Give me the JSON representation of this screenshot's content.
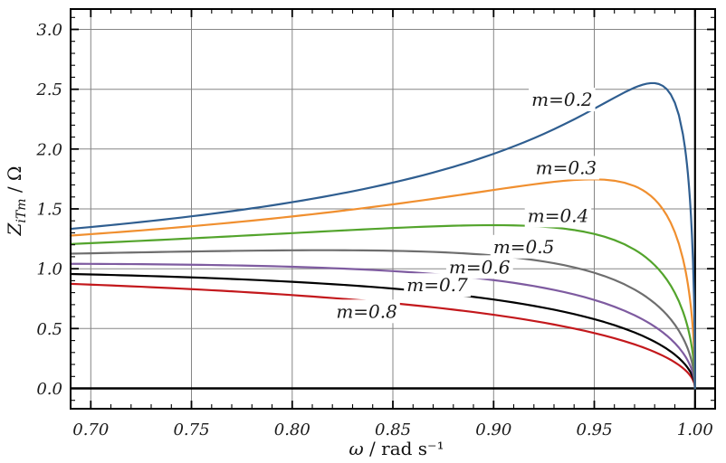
{
  "figure": {
    "background": "#ffffff"
  },
  "chart_data": {
    "type": "line",
    "title": "",
    "xlabel": "ω / rad s⁻¹",
    "ylabel": "Z_iTm / Ω",
    "xlabel_parts": {
      "pre": "ω",
      "post": " / rad s⁻¹"
    },
    "ylabel_parts": {
      "pre": "Z",
      "sub": "iTm",
      "post": " / Ω"
    },
    "xlim": [
      0.69,
      1.01
    ],
    "ylim": [
      -0.17,
      3.17
    ],
    "x_major_ticks": [
      0.7,
      0.75,
      0.8,
      0.85,
      0.9,
      0.95,
      1.0
    ],
    "x_tick_labels": [
      "0.70",
      "0.75",
      "0.80",
      "0.85",
      "0.90",
      "0.95",
      "1.00"
    ],
    "y_major_ticks": [
      0.0,
      0.5,
      1.0,
      1.5,
      2.0,
      2.5,
      3.0
    ],
    "y_tick_labels": [
      "0.0",
      "0.5",
      "1.0",
      "1.5",
      "2.0",
      "2.5",
      "3.0"
    ],
    "x_minor_step": 0.01,
    "y_minor_step": 0.1,
    "grid": "major",
    "grid_color": "#858585",
    "emphasis_lines": {
      "vertical_x": 1.0,
      "horizontal_y": 0.0,
      "color": "#000000"
    },
    "legend": "inline-labels",
    "curve_formula": "Z_iTm(ω) = sqrt(1-ω²) / (1-(1-m²)·ω²)",
    "x_samples": [
      0.69,
      0.72,
      0.75,
      0.78,
      0.81,
      0.84,
      0.87,
      0.9,
      0.92,
      0.94,
      0.95,
      0.96,
      0.97,
      0.98,
      0.985,
      0.99,
      0.995,
      1.0
    ],
    "series": [
      {
        "name": "m=0.2",
        "m": 0.2,
        "color": "#2f5e90",
        "label_pos": [
          0.934,
          2.41
        ],
        "values": [
          1.333,
          1.381,
          1.438,
          1.504,
          1.584,
          1.682,
          1.804,
          1.96,
          2.091,
          2.248,
          2.337,
          2.429,
          2.513,
          2.551,
          2.516,
          2.387,
          2.014,
          0
        ]
      },
      {
        "name": "m=0.3",
        "m": 0.3,
        "color": "#f08f2f",
        "label_pos": [
          0.936,
          1.84
        ],
        "values": [
          1.277,
          1.314,
          1.355,
          1.402,
          1.455,
          1.516,
          1.584,
          1.658,
          1.706,
          1.741,
          1.747,
          1.735,
          1.691,
          1.579,
          1.474,
          1.305,
          1.008,
          0
        ]
      },
      {
        "name": "m=0.4",
        "m": 0.4,
        "color": "#53a42c",
        "label_pos": [
          0.932,
          1.44
        ],
        "values": [
          1.206,
          1.229,
          1.254,
          1.28,
          1.306,
          1.332,
          1.354,
          1.364,
          1.356,
          1.323,
          1.291,
          1.24,
          1.16,
          1.03,
          0.933,
          0.798,
          0.593,
          0
        ]
      },
      {
        "name": "m=0.5",
        "m": 0.5,
        "color": "#6e6e6e",
        "label_pos": [
          0.915,
          1.18
        ],
        "values": [
          1.126,
          1.135,
          1.144,
          1.151,
          1.155,
          1.152,
          1.14,
          1.111,
          1.073,
          1.012,
          0.966,
          0.907,
          0.826,
          0.711,
          0.634,
          0.533,
          0.388,
          0
        ]
      },
      {
        "name": "m=0.6",
        "m": 0.6,
        "color": "#7e5ba0",
        "label_pos": [
          0.893,
          1.01
        ],
        "values": [
          1.041,
          1.039,
          1.034,
          1.025,
          1.011,
          0.989,
          0.956,
          0.905,
          0.855,
          0.785,
          0.739,
          0.683,
          0.611,
          0.516,
          0.455,
          0.378,
          0.273,
          0
        ]
      },
      {
        "name": "m=0.7",
        "m": 0.7,
        "color": "#000000",
        "label_pos": [
          0.872,
          0.86
        ],
        "values": [
          0.956,
          0.943,
          0.928,
          0.907,
          0.881,
          0.848,
          0.803,
          0.743,
          0.69,
          0.621,
          0.579,
          0.528,
          0.467,
          0.39,
          0.342,
          0.282,
          0.202,
          0
        ]
      },
      {
        "name": "m=0.8",
        "m": 0.8,
        "color": "#c3181c",
        "label_pos": [
          0.837,
          0.64
        ],
        "values": [
          0.873,
          0.853,
          0.829,
          0.801,
          0.768,
          0.727,
          0.678,
          0.615,
          0.564,
          0.5,
          0.462,
          0.419,
          0.368,
          0.304,
          0.265,
          0.218,
          0.155,
          0
        ]
      }
    ]
  }
}
